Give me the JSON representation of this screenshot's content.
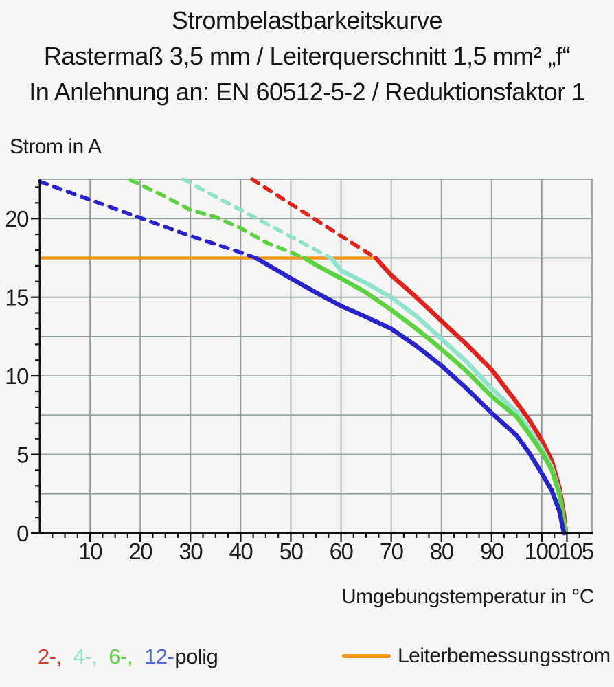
{
  "title": {
    "line1": "Strombelastbarkeitskurve",
    "line2": "Rastermaß 3,5 mm / Leiterquerschnitt 1,5 mm² „f“",
    "line3": "In Anlehnung an: EN 60512-5-2 / Reduktionsfaktor 1"
  },
  "axes": {
    "y_title": "Strom in A",
    "x_title": "Umgebungstemperatur in °C"
  },
  "legend": {
    "pole_items": [
      {
        "label": "2-,",
        "color": "#d93a2b"
      },
      {
        "label": "4-,",
        "color": "#8fe3cc"
      },
      {
        "label": "6-,",
        "color": "#5bd23f"
      },
      {
        "label": "12-",
        "color": "#4e68dc"
      }
    ],
    "pole_suffix": "polig",
    "rated_current_label": "Leiterbemessungsstrom",
    "rated_current_color": "#f5971e"
  },
  "chart_data": {
    "type": "line",
    "title": "Strombelastbarkeitskurve",
    "xlabel": "Umgebungstemperatur in °C",
    "ylabel": "Strom in A",
    "xlim": [
      0,
      110
    ],
    "ylim": [
      0,
      22.5
    ],
    "grid": true,
    "grid_color": "#95a0a0",
    "axis_color": "#111111",
    "x_gridline_step": 10,
    "y_gridline_step": 2.5,
    "x_minor_tick_step": 2.5,
    "y_minor_tick_step": 1,
    "x_tick_labels": [
      {
        "value": 10,
        "dx": 0
      },
      {
        "value": 20,
        "dx": 0
      },
      {
        "value": 30,
        "dx": 0
      },
      {
        "value": 40,
        "dx": 0
      },
      {
        "value": 50,
        "dx": 0
      },
      {
        "value": 60,
        "dx": 0
      },
      {
        "value": 70,
        "dx": 0
      },
      {
        "value": 80,
        "dx": 0
      },
      {
        "value": 90,
        "dx": 0
      },
      {
        "value": 100,
        "dx": 0
      },
      {
        "value": 105,
        "dx": 13
      }
    ],
    "y_tick_labels": [
      0,
      5,
      10,
      15,
      20
    ],
    "rated_current_line": {
      "name": "Leiterbemessungsstrom",
      "color": "#f5971e",
      "value": 17.5,
      "x_start": 0,
      "x_end": 66.9
    },
    "series": [
      {
        "name": "2-polig",
        "color": "#e0221a",
        "dashed_points": [
          [
            42.3,
            22.5
          ],
          [
            45,
            21.95
          ],
          [
            50,
            20.93
          ],
          [
            55,
            19.92
          ],
          [
            60,
            18.9
          ],
          [
            65,
            17.89
          ],
          [
            66.9,
            17.5
          ]
        ],
        "solid_points": [
          [
            66.9,
            17.5
          ],
          [
            70,
            16.4
          ],
          [
            75,
            15.0
          ],
          [
            80,
            13.5
          ],
          [
            85,
            12.0
          ],
          [
            90,
            10.4
          ],
          [
            95,
            8.3
          ],
          [
            97.5,
            7.2
          ],
          [
            100,
            5.9
          ],
          [
            102,
            4.6
          ],
          [
            103.5,
            2.9
          ],
          [
            104.4,
            1.2
          ],
          [
            104.8,
            0
          ]
        ]
      },
      {
        "name": "4-polig",
        "color": "#8fe3cc",
        "dashed_points": [
          [
            28.6,
            22.5
          ],
          [
            35,
            21.4
          ],
          [
            40,
            20.56
          ],
          [
            45,
            19.7
          ],
          [
            50,
            18.86
          ],
          [
            55,
            18.0
          ],
          [
            58,
            17.5
          ]
        ],
        "solid_points": [
          [
            58,
            17.5
          ],
          [
            60,
            16.7
          ],
          [
            65,
            15.9
          ],
          [
            70,
            15.0
          ],
          [
            75,
            13.8
          ],
          [
            80,
            12.35
          ],
          [
            85,
            10.9
          ],
          [
            90,
            9.2
          ],
          [
            95,
            7.7
          ],
          [
            97.5,
            6.6
          ],
          [
            100,
            5.4
          ],
          [
            102,
            4.2
          ],
          [
            103.5,
            2.6
          ],
          [
            104.75,
            0
          ]
        ]
      },
      {
        "name": "6-polig",
        "color": "#5bd23f",
        "dashed_points": [
          [
            18.1,
            22.45
          ],
          [
            25,
            21.4
          ],
          [
            30,
            20.55
          ],
          [
            35,
            20.1
          ],
          [
            40,
            19.4
          ],
          [
            45,
            18.5
          ],
          [
            50,
            17.85
          ],
          [
            52.7,
            17.5
          ]
        ],
        "solid_points": [
          [
            52.7,
            17.5
          ],
          [
            55,
            17.05
          ],
          [
            60,
            16.2
          ],
          [
            65,
            15.3
          ],
          [
            70,
            14.2
          ],
          [
            75,
            13.0
          ],
          [
            80,
            11.7
          ],
          [
            85,
            10.3
          ],
          [
            90,
            8.7
          ],
          [
            95,
            7.4
          ],
          [
            97.5,
            6.3
          ],
          [
            100,
            5.15
          ],
          [
            102,
            4.0
          ],
          [
            103.5,
            2.5
          ],
          [
            104.7,
            0
          ]
        ]
      },
      {
        "name": "12-polig",
        "color": "#2823cb",
        "dashed_points": [
          [
            0,
            22.35
          ],
          [
            10,
            21.2
          ],
          [
            20,
            20.05
          ],
          [
            30,
            18.9
          ],
          [
            40,
            17.85
          ],
          [
            43,
            17.5
          ]
        ],
        "solid_points": [
          [
            43,
            17.5
          ],
          [
            50,
            16.2
          ],
          [
            55,
            15.3
          ],
          [
            60,
            14.45
          ],
          [
            65,
            13.75
          ],
          [
            70,
            13.0
          ],
          [
            75,
            11.9
          ],
          [
            80,
            10.65
          ],
          [
            85,
            9.2
          ],
          [
            90,
            7.64
          ],
          [
            95,
            6.2
          ],
          [
            97.5,
            5.1
          ],
          [
            100,
            3.8
          ],
          [
            102,
            2.7
          ],
          [
            103.5,
            1.4
          ],
          [
            104.4,
            0
          ]
        ]
      }
    ]
  }
}
